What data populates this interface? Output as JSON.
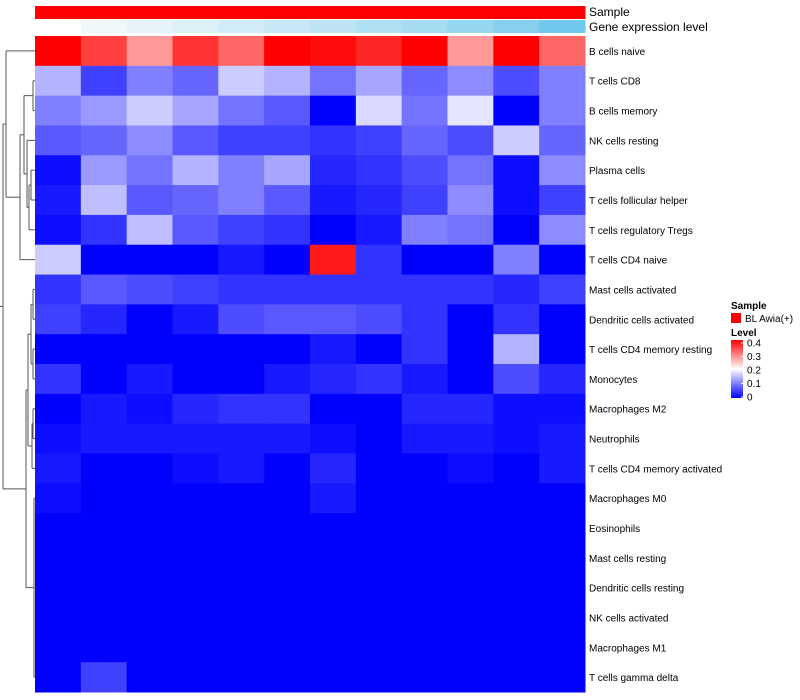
{
  "chart_data": {
    "type": "heatmap",
    "title": "",
    "annotation_tracks": [
      "Sample",
      "Gene expression level"
    ],
    "legend": {
      "sample_title": "Sample",
      "sample_entry": "BL Awia(+)",
      "sample_color": "#ff0000",
      "level_title": "Level",
      "ticks": [
        "0.4",
        "0.3",
        "0.2",
        "0.1",
        "0"
      ],
      "tick_values": [
        0.4,
        0.3,
        0.2,
        0.1,
        0
      ]
    },
    "color_scale": {
      "low": "#0000ff",
      "mid": "#ffffff",
      "high": "#ff0000",
      "min": 0,
      "mid_value": 0.2,
      "max": 0.4
    },
    "expression_colors": [
      "#ffffff",
      "#f0f8fc",
      "#e6f4fa",
      "#dcf0f8",
      "#d2ecf7",
      "#c8e8f5",
      "#bee4f4",
      "#b0e0f3",
      "#a6dcf1",
      "#96d6f0",
      "#86d0ee",
      "#72c8ec",
      "#5ac0ea"
    ],
    "rows": [
      "B cells naive",
      "T cells CD8",
      "B cells memory",
      "NK cells resting",
      "Plasma cells",
      "T cells follicular helper",
      "T cells regulatory  Tregs",
      "T cells CD4 naive",
      "Mast cells activated",
      "Dendritic cells activated",
      "T cells CD4 memory resting",
      "Monocytes",
      "Macrophages M2",
      "Neutrophils",
      "T cells CD4 memory activated",
      "Macrophages M0",
      "Eosinophils",
      "Mast cells resting",
      "Dendritic cells resting",
      "NK cells activated",
      "Macrophages M1",
      "T cells gamma delta"
    ],
    "values": [
      [
        0.4,
        0.35,
        0.28,
        0.36,
        0.32,
        0.4,
        0.39,
        0.37,
        0.4,
        0.28,
        0.4,
        0.32
      ],
      [
        0.14,
        0.05,
        0.1,
        0.08,
        0.16,
        0.14,
        0.09,
        0.13,
        0.08,
        0.11,
        0.06,
        0.1
      ],
      [
        0.1,
        0.12,
        0.16,
        0.13,
        0.09,
        0.07,
        0.0,
        0.17,
        0.09,
        0.18,
        0.0,
        0.1
      ],
      [
        0.07,
        0.08,
        0.11,
        0.07,
        0.05,
        0.05,
        0.04,
        0.05,
        0.08,
        0.06,
        0.16,
        0.08
      ],
      [
        0.01,
        0.12,
        0.09,
        0.14,
        0.1,
        0.13,
        0.03,
        0.04,
        0.06,
        0.09,
        0.01,
        0.11
      ],
      [
        0.02,
        0.15,
        0.07,
        0.08,
        0.1,
        0.07,
        0.02,
        0.03,
        0.05,
        0.11,
        0.01,
        0.05
      ],
      [
        0.01,
        0.04,
        0.15,
        0.07,
        0.05,
        0.04,
        0.0,
        0.02,
        0.1,
        0.09,
        0.0,
        0.11
      ],
      [
        0.16,
        0.0,
        0.0,
        0.0,
        0.02,
        0.0,
        0.38,
        0.04,
        0.0,
        0.0,
        0.1,
        0.0
      ],
      [
        0.04,
        0.07,
        0.06,
        0.05,
        0.04,
        0.04,
        0.04,
        0.04,
        0.04,
        0.04,
        0.03,
        0.05
      ],
      [
        0.05,
        0.03,
        0.0,
        0.02,
        0.06,
        0.07,
        0.07,
        0.06,
        0.04,
        0.0,
        0.04,
        0.0
      ],
      [
        0.0,
        0.0,
        0.0,
        0.0,
        0.0,
        0.0,
        0.02,
        0.0,
        0.04,
        0.0,
        0.14,
        0.0
      ],
      [
        0.04,
        0.0,
        0.02,
        0.0,
        0.0,
        0.02,
        0.03,
        0.04,
        0.02,
        0.0,
        0.06,
        0.03
      ],
      [
        0.0,
        0.02,
        0.01,
        0.03,
        0.04,
        0.04,
        0.0,
        0.0,
        0.03,
        0.03,
        0.01,
        0.01
      ],
      [
        0.01,
        0.02,
        0.02,
        0.02,
        0.02,
        0.02,
        0.01,
        0.0,
        0.02,
        0.02,
        0.01,
        0.02
      ],
      [
        0.02,
        0.0,
        0.0,
        0.01,
        0.02,
        0.0,
        0.03,
        0.0,
        0.0,
        0.01,
        0.0,
        0.02
      ],
      [
        0.01,
        0.0,
        0.0,
        0.0,
        0.0,
        0.0,
        0.02,
        0.0,
        0.0,
        0.0,
        0.0,
        0.0
      ],
      [
        0.0,
        0.0,
        0.0,
        0.0,
        0.0,
        0.0,
        0.0,
        0.0,
        0.0,
        0.0,
        0.0,
        0.0
      ],
      [
        0.0,
        0.0,
        0.0,
        0.0,
        0.0,
        0.0,
        0.0,
        0.0,
        0.0,
        0.0,
        0.0,
        0.0
      ],
      [
        0.0,
        0.0,
        0.0,
        0.0,
        0.0,
        0.0,
        0.0,
        0.0,
        0.0,
        0.0,
        0.0,
        0.0
      ],
      [
        0.0,
        0.0,
        0.0,
        0.0,
        0.0,
        0.0,
        0.0,
        0.0,
        0.0,
        0.0,
        0.0,
        0.0
      ],
      [
        0.0,
        0.0,
        0.0,
        0.0,
        0.0,
        0.0,
        0.0,
        0.0,
        0.0,
        0.0,
        0.0,
        0.0
      ],
      [
        0.0,
        0.05,
        0.0,
        0.0,
        0.0,
        0.0,
        0.0,
        0.0,
        0.0,
        0.0,
        0.0,
        0.0
      ]
    ]
  }
}
